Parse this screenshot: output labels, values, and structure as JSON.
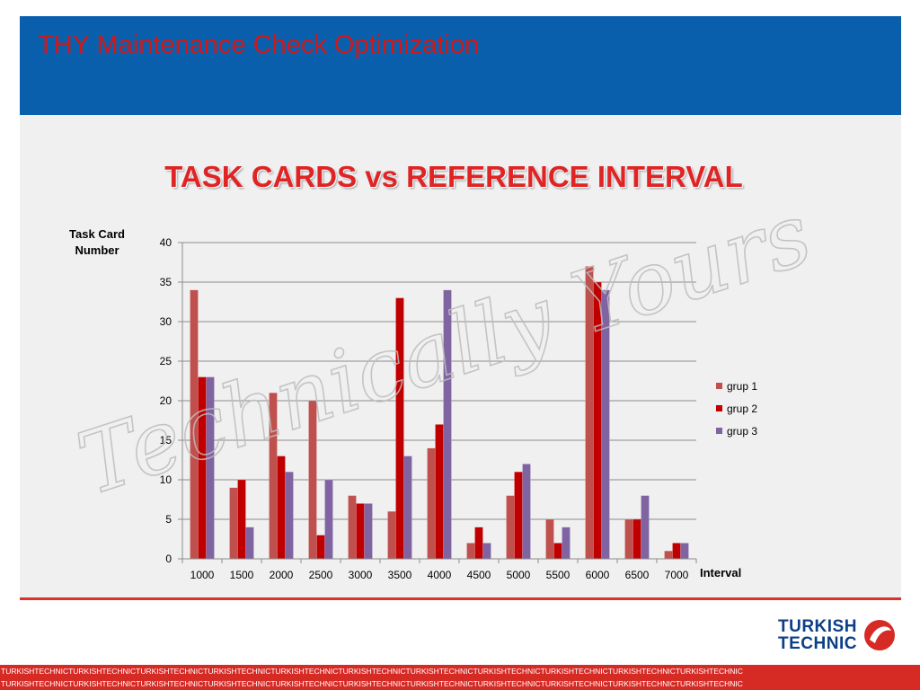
{
  "slide": {
    "header_title": "THY Maintenance Check Optimization",
    "header_color": "#0a5fad",
    "accent_red": "#d9312b",
    "strip_text": "TURKISHTECHNICTURKISHTECHNICTURKISHTECHNICTURKISHTECHNICTURKISHTECHNICTURKISHTECHNICTURKISHTECHNICTURKISHTECHNICTURKISHTECHNICTURKISHTECHNICTURKISHTECHNIC"
  },
  "logo": {
    "line1": "TURKISH",
    "line2": "TECHNIC",
    "icon": "turkish-airlines-crescent-icon"
  },
  "watermark": {
    "text": "Technically Yours"
  },
  "chart_data": {
    "type": "bar",
    "title": "TASK CARDS vs REFERENCE INTERVAL",
    "xlabel": "Interval",
    "ylabel": "Task Card Number",
    "ylim": [
      0,
      40
    ],
    "yticks": [
      0,
      5,
      10,
      15,
      20,
      25,
      30,
      35,
      40
    ],
    "grid": true,
    "legend_position": "right",
    "categories": [
      "1000",
      "1500",
      "2000",
      "2500",
      "3000",
      "3500",
      "4000",
      "4500",
      "5000",
      "5500",
      "6000",
      "6500",
      "7000"
    ],
    "series": [
      {
        "name": "grup 1",
        "color": "#c0504d",
        "values": [
          34,
          9,
          21,
          20,
          8,
          6,
          14,
          2,
          8,
          5,
          37,
          5,
          1
        ]
      },
      {
        "name": "grup 2",
        "color": "#c00000",
        "values": [
          23,
          10,
          13,
          3,
          7,
          33,
          17,
          4,
          11,
          2,
          35,
          5,
          2
        ]
      },
      {
        "name": "grup 3",
        "color": "#8064a2",
        "values": [
          23,
          4,
          11,
          10,
          7,
          13,
          34,
          2,
          12,
          4,
          34,
          8,
          2
        ]
      }
    ]
  }
}
